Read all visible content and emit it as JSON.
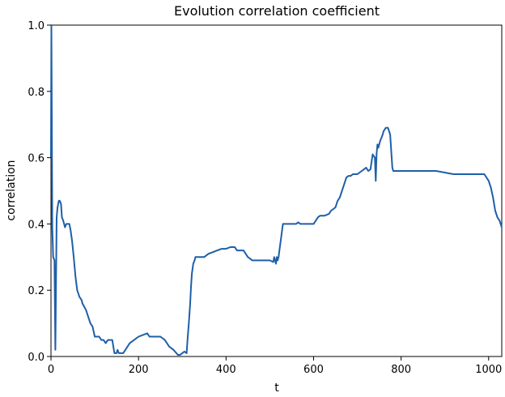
{
  "chart_data": {
    "type": "line",
    "title": "Evolution correlation coefficient",
    "xlabel": "t",
    "ylabel": "correlation",
    "xlim": [
      0,
      1030
    ],
    "ylim": [
      0,
      1.0
    ],
    "xticks": [
      0,
      200,
      400,
      600,
      800,
      1000
    ],
    "yticks": [
      0.0,
      0.2,
      0.4,
      0.6,
      0.8,
      1.0
    ],
    "xtick_labels": [
      "0",
      "200",
      "400",
      "600",
      "800",
      "1000"
    ],
    "ytick_labels": [
      "0.0",
      "0.2",
      "0.4",
      "0.6",
      "0.8",
      "1.0"
    ],
    "grid": false,
    "line_color": "#1f5fa8",
    "series": [
      {
        "x": [
          0,
          1,
          3,
          5,
          8,
          10,
          13,
          15,
          18,
          20,
          23,
          25,
          28,
          32,
          35,
          38,
          42,
          45,
          48,
          52,
          56,
          60,
          65,
          70,
          72,
          76,
          80,
          85,
          90,
          95,
          100,
          105,
          110,
          115,
          120,
          125,
          130,
          135,
          140,
          145,
          150,
          152,
          155,
          160,
          165,
          170,
          175,
          180,
          190,
          200,
          210,
          220,
          225,
          230,
          240,
          250,
          255,
          260,
          265,
          270,
          280,
          290,
          295,
          300,
          305,
          310,
          312,
          315,
          318,
          320,
          322,
          325,
          328,
          330,
          335,
          340,
          350,
          360,
          370,
          380,
          390,
          400,
          410,
          415,
          420,
          425,
          430,
          440,
          450,
          455,
          460,
          470,
          480,
          490,
          500,
          508,
          510,
          512,
          514,
          516,
          518,
          520,
          523,
          525,
          530,
          540,
          550,
          560,
          565,
          570,
          580,
          590,
          600,
          605,
          610,
          615,
          620,
          625,
          635,
          640,
          645,
          650,
          655,
          660,
          665,
          670,
          675,
          680,
          685,
          690,
          700,
          710,
          720,
          725,
          730,
          735,
          740,
          742,
          744,
          746,
          748,
          750,
          752,
          755,
          758,
          760,
          765,
          770,
          775,
          778,
          780,
          782,
          785,
          790,
          800,
          820,
          850,
          880,
          900,
          920,
          950,
          980,
          990,
          995,
          1000,
          1005,
          1010,
          1015,
          1020,
          1025,
          1030
        ],
        "y": [
          0.6,
          1.0,
          0.39,
          0.3,
          0.29,
          0.02,
          0.42,
          0.45,
          0.47,
          0.47,
          0.46,
          0.42,
          0.41,
          0.39,
          0.4,
          0.4,
          0.4,
          0.38,
          0.35,
          0.3,
          0.24,
          0.2,
          0.18,
          0.17,
          0.16,
          0.15,
          0.14,
          0.12,
          0.1,
          0.09,
          0.06,
          0.06,
          0.06,
          0.05,
          0.05,
          0.04,
          0.05,
          0.05,
          0.05,
          0.01,
          0.01,
          0.02,
          0.01,
          0.01,
          0.01,
          0.02,
          0.03,
          0.04,
          0.05,
          0.06,
          0.065,
          0.07,
          0.06,
          0.06,
          0.06,
          0.06,
          0.055,
          0.05,
          0.04,
          0.03,
          0.02,
          0.005,
          0.005,
          0.01,
          0.015,
          0.01,
          0.05,
          0.1,
          0.16,
          0.21,
          0.25,
          0.28,
          0.29,
          0.3,
          0.3,
          0.3,
          0.3,
          0.31,
          0.315,
          0.32,
          0.325,
          0.325,
          0.33,
          0.33,
          0.33,
          0.32,
          0.32,
          0.32,
          0.3,
          0.295,
          0.29,
          0.29,
          0.29,
          0.29,
          0.29,
          0.285,
          0.3,
          0.29,
          0.28,
          0.3,
          0.29,
          0.3,
          0.33,
          0.35,
          0.4,
          0.4,
          0.4,
          0.4,
          0.405,
          0.4,
          0.4,
          0.4,
          0.4,
          0.41,
          0.42,
          0.425,
          0.425,
          0.425,
          0.43,
          0.44,
          0.445,
          0.45,
          0.47,
          0.48,
          0.5,
          0.52,
          0.54,
          0.545,
          0.545,
          0.55,
          0.55,
          0.56,
          0.57,
          0.56,
          0.565,
          0.61,
          0.6,
          0.53,
          0.61,
          0.64,
          0.63,
          0.64,
          0.65,
          0.66,
          0.67,
          0.68,
          0.69,
          0.69,
          0.67,
          0.61,
          0.57,
          0.56,
          0.56,
          0.56,
          0.56,
          0.56,
          0.56,
          0.56,
          0.555,
          0.55,
          0.55,
          0.55,
          0.55,
          0.54,
          0.53,
          0.51,
          0.48,
          0.44,
          0.42,
          0.41,
          0.39
        ]
      }
    ]
  }
}
